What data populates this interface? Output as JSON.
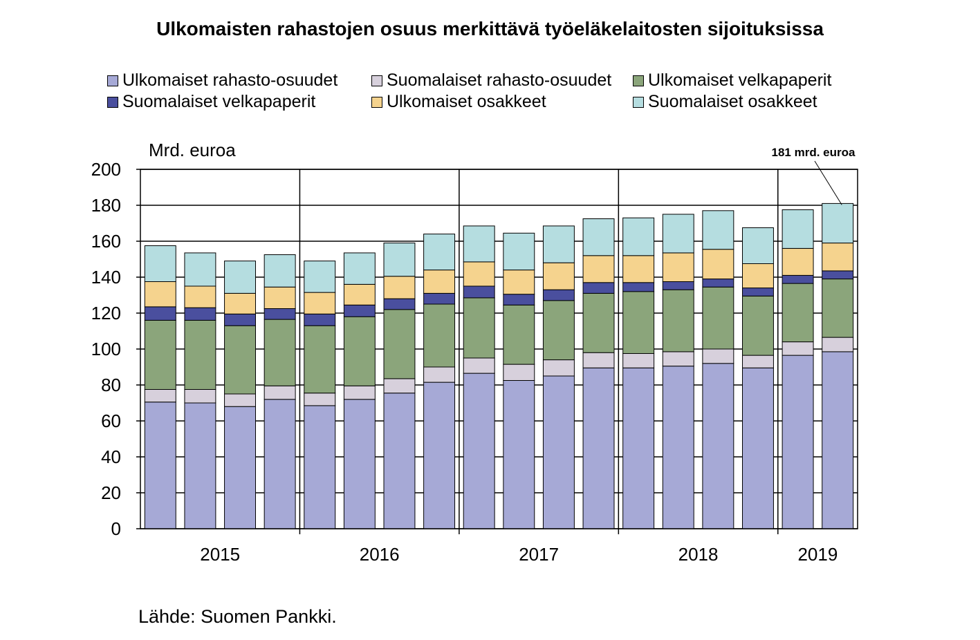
{
  "chart_data": {
    "type": "bar",
    "stacked": true,
    "title": "Ulkomaisten rahastojen osuus merkittävä työeläkelaitosten sijoituksissa",
    "ylabel": "Mrd. euroa",
    "ylim": [
      0,
      200
    ],
    "yticks": [
      0,
      20,
      40,
      60,
      80,
      100,
      120,
      140,
      160,
      180,
      200
    ],
    "grid": true,
    "legend_position": "top",
    "source": "Lähde: Suomen Pankki.",
    "year_labels": [
      "2015",
      "2016",
      "2017",
      "2018",
      "2019"
    ],
    "year_group_sizes": [
      4,
      4,
      4,
      4,
      2
    ],
    "annotation": "181 mrd. euroa",
    "series": [
      {
        "name": "Ulkomaiset rahasto-osuudet",
        "color": "#a6a9d6",
        "values": [
          70.5,
          70,
          68,
          72,
          68.5,
          72,
          75.5,
          81.5,
          86.5,
          82.5,
          85,
          89.5,
          89.5,
          90.5,
          92,
          89.5,
          96.5,
          98.5
        ]
      },
      {
        "name": "Suomalaiset rahasto-osuudet",
        "color": "#d7d0dc",
        "values": [
          7,
          7.5,
          7,
          7.5,
          7,
          7.5,
          8,
          8.5,
          8.5,
          9,
          9,
          8.5,
          8,
          8,
          8,
          7,
          7.5,
          8
        ]
      },
      {
        "name": "Ulkomaiset velkapaperit",
        "color": "#8ba57b",
        "values": [
          38.5,
          38.5,
          38,
          37,
          37.5,
          38.5,
          38.5,
          35,
          33.5,
          33,
          33,
          33,
          34.5,
          34.5,
          34.5,
          33,
          32.5,
          32.5
        ]
      },
      {
        "name": "Suomalaiset velkapaperit",
        "color": "#4a4f9e",
        "values": [
          7.5,
          7,
          6.5,
          6,
          6.5,
          6.5,
          6,
          6,
          6.5,
          6,
          6,
          6,
          5,
          4.5,
          4.5,
          4.5,
          4.5,
          4.5
        ]
      },
      {
        "name": "Ulkomaiset osakkeet",
        "color": "#f5d38e",
        "values": [
          14,
          12,
          11.5,
          12,
          12,
          11.5,
          12.5,
          13,
          13.5,
          13.5,
          15,
          15,
          15,
          16,
          16.5,
          13.5,
          15,
          15.5
        ]
      },
      {
        "name": "Suomalaiset osakkeet",
        "color": "#b5dde0",
        "values": [
          20,
          18.5,
          18,
          18,
          17.5,
          17.5,
          18.5,
          20,
          20,
          20.5,
          20.5,
          20.5,
          21,
          21.5,
          21.5,
          20,
          21.5,
          22
        ]
      }
    ]
  }
}
